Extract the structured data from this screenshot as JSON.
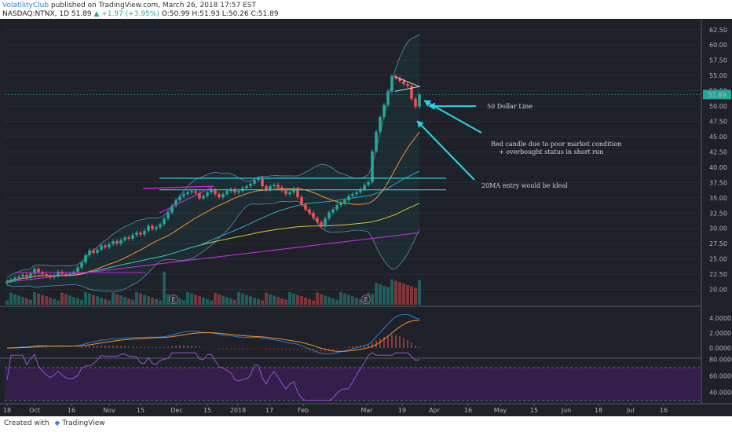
{
  "header": {
    "publisher": "VolatilityClub",
    "published_text": "published on TradingView.com, March 26, 2018 17:57 EST",
    "symbol": "NASDAQ:NTNX, 1D",
    "last": "51.89",
    "change": "▲ +1.97 (+3.95%)",
    "ohlc": "O:50.99 H:51.93 L:50.26 C:51.89"
  },
  "footer": {
    "created_with": "Created with",
    "brand": "TradingView"
  },
  "colors": {
    "background": "#1e2128",
    "up": "#26a69a",
    "down": "#ef5350",
    "annotation_line": "#2ad6e8",
    "ma20": "#f5922f",
    "ma50": "#1fb0c4",
    "ma100": "#d6c43a",
    "ma200": "#b22fd1",
    "macd": "#2a7fd4",
    "signal": "#f5922f",
    "rsi": "#9b4fd6"
  },
  "annotations": {
    "line50": "50 Dollar Line",
    "red_candle_1": "Red candle due to poor market condition",
    "red_candle_2": "+ overbought status in short run",
    "entry": "20MA entry would be ideal",
    "earnings": "E"
  },
  "chart_data": {
    "type": "candlestick",
    "title": "NASDAQ:NTNX, 1D",
    "x_tick_labels": [
      "18",
      "Oct",
      "16",
      "Nov",
      "15",
      "Dec",
      "15",
      "2018",
      "17",
      "Feb",
      "Mar",
      "19",
      "Apr",
      "16",
      "May",
      "15",
      "Jun",
      "18",
      "Jul",
      "16"
    ],
    "price_axis_labels": [
      "62.50",
      "60.00",
      "57.50",
      "55.00",
      "52.50",
      "50.00",
      "47.50",
      "45.00",
      "42.50",
      "40.00",
      "37.50",
      "35.00",
      "32.50",
      "30.00",
      "27.50",
      "25.00",
      "22.50",
      "20.00"
    ],
    "current_price_label": "51.89",
    "ylim": [
      17.5,
      63.5
    ],
    "closes": [
      21.3,
      21.6,
      21.9,
      22.1,
      22.4,
      22.0,
      22.6,
      23.4,
      22.8,
      22.5,
      22.2,
      22.0,
      22.3,
      22.9,
      22.5,
      22.4,
      22.6,
      22.9,
      23.6,
      24.4,
      25.6,
      26.4,
      26.0,
      26.5,
      27.2,
      26.9,
      27.4,
      27.9,
      27.5,
      28.1,
      28.5,
      28.3,
      28.9,
      29.3,
      29.0,
      29.6,
      30.4,
      29.9,
      30.2,
      30.7,
      31.6,
      32.6,
      33.7,
      34.6,
      35.2,
      35.6,
      35.9,
      36.1,
      35.8,
      34.9,
      35.3,
      35.9,
      36.3,
      35.6,
      35.1,
      35.6,
      36.1,
      36.4,
      35.9,
      36.1,
      36.6,
      36.9,
      37.3,
      37.9,
      38.1,
      36.9,
      36.3,
      36.9,
      37.1,
      36.7,
      36.2,
      35.6,
      35.9,
      36.5,
      35.1,
      33.9,
      33.1,
      32.5,
      31.7,
      31.0,
      30.4,
      31.6,
      32.6,
      33.1,
      33.8,
      34.1,
      34.6,
      35.3,
      35.6,
      35.9,
      36.4,
      37.1,
      37.6,
      42.6,
      45.8,
      48.2,
      50.2,
      52.4,
      54.9,
      54.6,
      54.1,
      53.6,
      53.3,
      51.2,
      49.9,
      51.89
    ],
    "rsi_levels": [
      70,
      30
    ],
    "macd_labels": [
      "4.0000",
      "2.0000",
      "0.0000"
    ],
    "rsi_labels": [
      "80.0000",
      "60.0000",
      "40.0000"
    ]
  }
}
